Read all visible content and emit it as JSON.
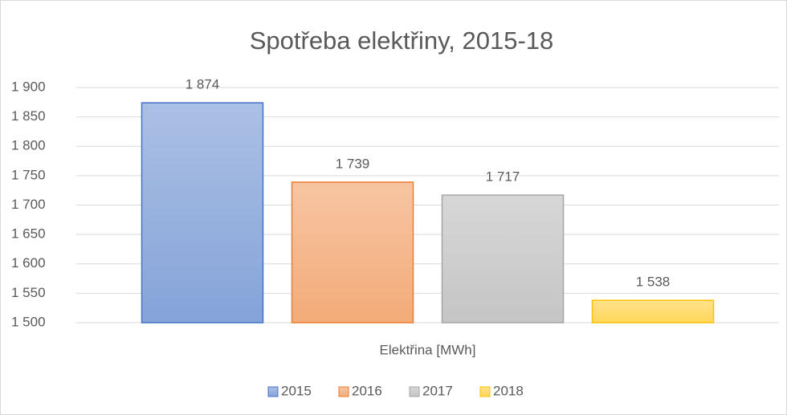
{
  "chart_data": {
    "type": "bar",
    "title": "Spotřeba elektřiny, 2015-18",
    "categories": [
      "Elektřina [MWh]"
    ],
    "series": [
      {
        "name": "2015",
        "color": "#4472c4",
        "values": [
          1874
        ],
        "value_labels": [
          "1 874"
        ]
      },
      {
        "name": "2016",
        "color": "#ed7d31",
        "values": [
          1739
        ],
        "value_labels": [
          "1 739"
        ]
      },
      {
        "name": "2017",
        "color": "#a5a5a5",
        "values": [
          1717
        ],
        "value_labels": [
          "1 717"
        ]
      },
      {
        "name": "2018",
        "color": "#ffc000",
        "values": [
          1538
        ],
        "value_labels": [
          "1 538"
        ]
      }
    ],
    "ylim": [
      1500,
      1900
    ],
    "yticks": [
      {
        "value": 1500,
        "label": "1 500"
      },
      {
        "value": 1550,
        "label": "1 550"
      },
      {
        "value": 1600,
        "label": "1 600"
      },
      {
        "value": 1650,
        "label": "1 650"
      },
      {
        "value": 1700,
        "label": "1 700"
      },
      {
        "value": 1750,
        "label": "1 750"
      },
      {
        "value": 1800,
        "label": "1 800"
      },
      {
        "value": 1850,
        "label": "1 850"
      },
      {
        "value": 1900,
        "label": "1 900"
      }
    ],
    "grid": true,
    "legend": "bottom"
  }
}
